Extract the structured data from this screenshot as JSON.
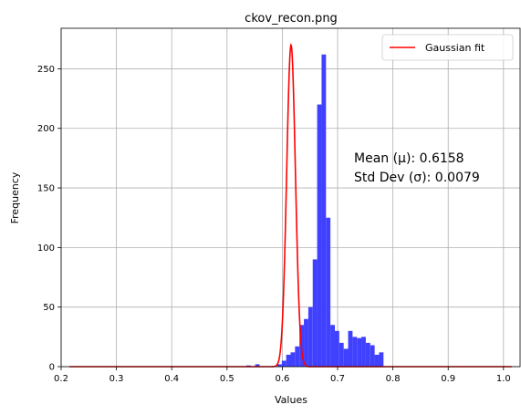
{
  "chart_data": {
    "type": "bar",
    "title": "ckov_recon.png",
    "xlabel": "Values",
    "ylabel": "Frequency",
    "xlim": [
      0.2,
      1.03
    ],
    "ylim": [
      0,
      284
    ],
    "xticks": [
      0.2,
      0.3,
      0.4,
      0.5,
      0.6,
      0.7,
      0.8,
      0.9,
      1.0
    ],
    "yticks": [
      0,
      50,
      100,
      150,
      200,
      250
    ],
    "grid": true,
    "histogram": {
      "name": "",
      "color": "#4040ff",
      "bin_start": 0.215,
      "bin_width": 0.008,
      "counts": [
        0,
        0,
        0,
        0,
        0,
        0,
        0,
        0,
        0,
        0,
        0,
        0,
        0,
        0,
        0,
        0,
        0,
        0,
        0,
        0,
        0,
        0,
        0,
        0,
        0,
        0,
        0,
        0,
        0,
        0,
        0,
        0,
        0,
        0,
        0,
        0,
        0,
        0,
        0,
        0,
        1,
        0,
        2,
        0,
        0,
        0,
        0,
        2,
        5,
        10,
        12,
        17,
        35,
        40,
        50,
        90,
        220,
        262,
        125,
        35,
        30,
        20,
        15,
        30,
        25,
        24,
        25,
        20,
        18,
        10,
        12,
        0,
        0,
        0,
        0,
        0,
        0,
        0,
        0,
        0,
        0,
        0,
        0,
        0,
        0,
        0,
        0,
        0,
        0,
        0,
        0,
        0,
        0,
        0,
        0,
        0,
        0,
        0,
        0,
        0
      ]
    },
    "gaussian_fit": {
      "name": "Gaussian fit",
      "color": "#ff0000",
      "mean": 0.6158,
      "sigma": 0.0079,
      "peak": 270,
      "x_range": [
        0.215,
        1.015
      ]
    },
    "legend": {
      "position": "top-right",
      "entries": [
        "Gaussian fit"
      ]
    },
    "annotations": [
      {
        "text": "Mean (μ): 0.6158"
      },
      {
        "text": "Std Dev (σ): 0.0079"
      }
    ]
  }
}
